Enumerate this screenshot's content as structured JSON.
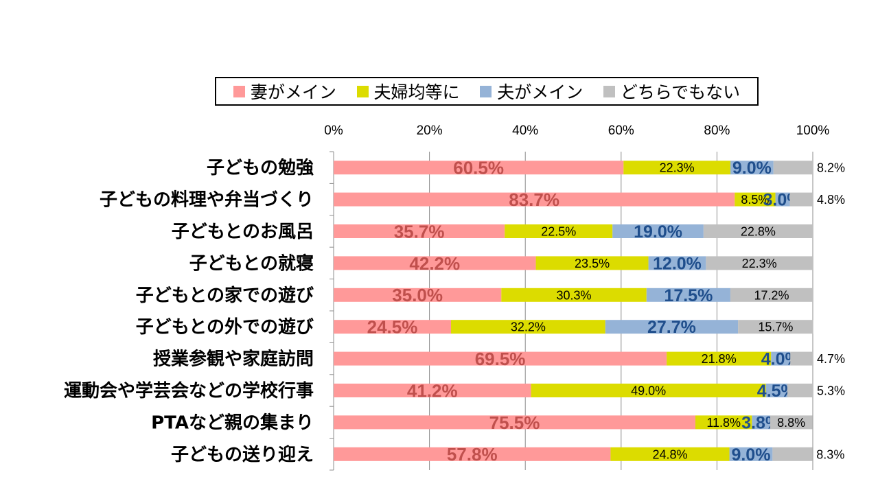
{
  "chart_data": {
    "type": "bar",
    "orientation": "horizontal",
    "stacked": "percent",
    "categories": [
      "子どもの勉強",
      "子どもの料理や弁当づくり",
      "子どもとのお風呂",
      "子どもとの就寝",
      "子どもとの家での遊び",
      "子どもとの外での遊び",
      "授業参観や家庭訪問",
      "運動会や学芸会などの学校行事",
      "PTAなど親の集まり",
      "子どもの送り迎え"
    ],
    "series": [
      {
        "name": "妻がメイン",
        "color": "#ff9999",
        "label_color": "#c0504d",
        "values": [
          60.5,
          83.7,
          35.7,
          42.2,
          35.0,
          24.5,
          69.5,
          41.2,
          75.5,
          57.8
        ],
        "labels": [
          "60.5%",
          "83.7%",
          "35.7%",
          "42.2%",
          "35.0%",
          "24.5%",
          "69.5%",
          "41.2%",
          "75.5%",
          "57.8%"
        ]
      },
      {
        "name": "夫婦均等に",
        "color": "#dcdc00",
        "label_color": "#000000",
        "values": [
          22.3,
          8.5,
          22.5,
          23.5,
          30.3,
          32.2,
          21.8,
          49.0,
          11.8,
          24.8
        ],
        "labels": [
          "22.3%",
          "8.5%",
          "22.5%",
          "23.5%",
          "30.3%",
          "32.2%",
          "21.8%",
          "49.0%",
          "11.8%",
          "24.8%"
        ]
      },
      {
        "name": "夫がメイン",
        "color": "#95b3d7",
        "label_color": "#1f4e8c",
        "values": [
          9.0,
          3.0,
          19.0,
          12.0,
          17.5,
          27.7,
          4.0,
          4.5,
          3.8,
          9.0
        ],
        "labels": [
          "9.0%",
          "3.0%",
          "19.0%",
          "12.0%",
          "17.5%",
          "27.7%",
          "4.0%",
          "4.5%",
          "3.8%",
          "9.0%"
        ]
      },
      {
        "name": "どちらでもない",
        "color": "#c0c0c0",
        "label_color": "#000000",
        "values": [
          8.2,
          4.8,
          22.8,
          22.3,
          17.2,
          15.7,
          4.7,
          5.3,
          8.8,
          8.3
        ],
        "labels": [
          "8.2%",
          "4.8%",
          "22.8%",
          "22.3%",
          "17.2%",
          "15.7%",
          "4.7%",
          "5.3%",
          "8.8%",
          "8.3%"
        ]
      }
    ],
    "xaxis_ticks": [
      "0%",
      "20%",
      "40%",
      "60%",
      "80%",
      "100%"
    ],
    "xlim": [
      0,
      100
    ],
    "legend_position": "top",
    "title": ""
  }
}
